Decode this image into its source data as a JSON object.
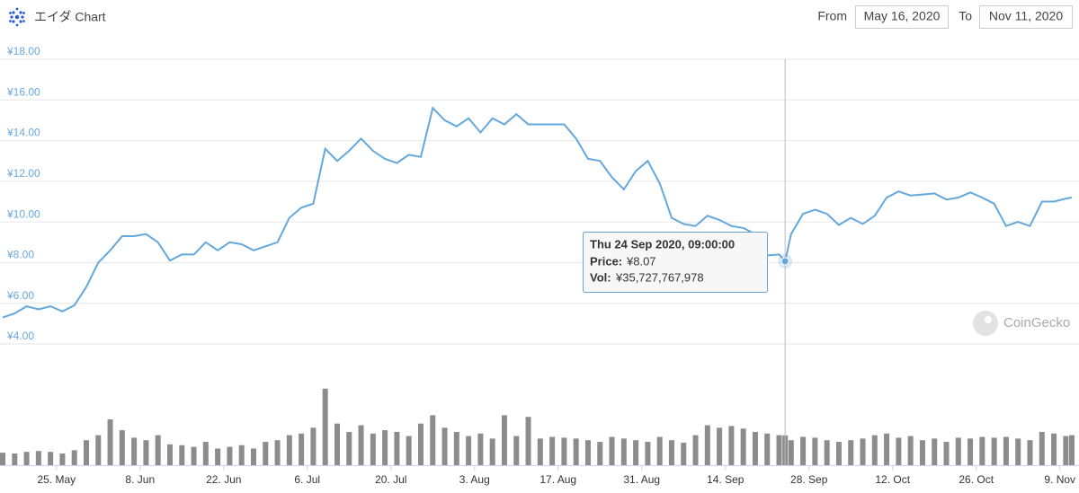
{
  "header": {
    "title": "エイダ Chart",
    "from_label": "From",
    "from": "May 16, 2020",
    "to_label": "To",
    "to": "Nov 11, 2020"
  },
  "watermark": "CoinGecko",
  "chart_data": {
    "type": "line",
    "x": [
      "2020-05-16",
      "2020-05-18",
      "2020-05-20",
      "2020-05-22",
      "2020-05-24",
      "2020-05-26",
      "2020-05-28",
      "2020-05-30",
      "2020-06-01",
      "2020-06-03",
      "2020-06-05",
      "2020-06-07",
      "2020-06-09",
      "2020-06-11",
      "2020-06-13",
      "2020-06-15",
      "2020-06-17",
      "2020-06-19",
      "2020-06-21",
      "2020-06-23",
      "2020-06-25",
      "2020-06-27",
      "2020-06-29",
      "2020-07-01",
      "2020-07-03",
      "2020-07-05",
      "2020-07-07",
      "2020-07-09",
      "2020-07-11",
      "2020-07-13",
      "2020-07-15",
      "2020-07-17",
      "2020-07-19",
      "2020-07-21",
      "2020-07-23",
      "2020-07-25",
      "2020-07-27",
      "2020-07-29",
      "2020-07-31",
      "2020-08-02",
      "2020-08-04",
      "2020-08-06",
      "2020-08-08",
      "2020-08-10",
      "2020-08-12",
      "2020-08-14",
      "2020-08-16",
      "2020-08-18",
      "2020-08-20",
      "2020-08-22",
      "2020-08-24",
      "2020-08-26",
      "2020-08-28",
      "2020-08-30",
      "2020-09-01",
      "2020-09-03",
      "2020-09-05",
      "2020-09-07",
      "2020-09-09",
      "2020-09-11",
      "2020-09-13",
      "2020-09-15",
      "2020-09-17",
      "2020-09-19",
      "2020-09-21",
      "2020-09-23",
      "2020-09-24",
      "2020-09-25",
      "2020-09-27",
      "2020-09-29",
      "2020-10-01",
      "2020-10-03",
      "2020-10-05",
      "2020-10-07",
      "2020-10-09",
      "2020-10-11",
      "2020-10-13",
      "2020-10-15",
      "2020-10-17",
      "2020-10-19",
      "2020-10-21",
      "2020-10-23",
      "2020-10-25",
      "2020-10-27",
      "2020-10-29",
      "2020-10-31",
      "2020-11-02",
      "2020-11-04",
      "2020-11-06",
      "2020-11-08",
      "2020-11-10",
      "2020-11-11"
    ],
    "series": [
      {
        "color": "#64a7dd",
        "values": [
          5.3,
          5.5,
          5.85,
          5.7,
          5.85,
          5.6,
          5.9,
          6.8,
          8.0,
          8.6,
          9.3,
          9.3,
          9.4,
          9.0,
          8.1,
          8.4,
          8.4,
          9.0,
          8.6,
          9.0,
          8.9,
          8.6,
          8.8,
          9.0,
          10.2,
          10.7,
          10.9,
          13.6,
          13.0,
          13.5,
          14.1,
          13.5,
          13.1,
          12.9,
          13.3,
          13.2,
          15.6,
          15.0,
          14.7,
          15.1,
          14.4,
          15.1,
          14.8,
          15.3,
          14.8,
          14.8,
          14.8,
          14.8,
          14.1,
          13.1,
          13.0,
          12.2,
          11.6,
          12.5,
          13.0,
          11.9,
          10.2,
          9.9,
          9.8,
          10.3,
          10.1,
          9.8,
          9.7,
          9.4,
          8.35,
          8.4,
          8.07,
          9.4,
          10.4,
          10.6,
          10.4,
          9.85,
          10.2,
          9.9,
          10.3,
          11.2,
          11.5,
          11.3,
          11.35,
          11.4,
          11.1,
          11.2,
          11.45,
          11.2,
          10.9,
          9.8,
          10.0,
          9.8,
          11.0,
          11.0,
          11.15,
          11.2
        ]
      },
      {
        "color": "#8c8c8c",
        "axis": "y2",
        "values": [
          15000000000.0,
          14000000000.0,
          16000000000.0,
          17000000000.0,
          16000000000.0,
          14000000000.0,
          18000000000.0,
          30000000000.0,
          36000000000.0,
          55000000000.0,
          42000000000.0,
          33000000000.0,
          30000000000.0,
          36000000000.0,
          25000000000.0,
          24000000000.0,
          22000000000.0,
          28000000000.0,
          20000000000.0,
          22000000000.0,
          24000000000.0,
          20000000000.0,
          28000000000.0,
          30000000000.0,
          36000000000.0,
          38000000000.0,
          45000000000.0,
          92000000000.0,
          50000000000.0,
          40000000000.0,
          48000000000.0,
          38000000000.0,
          42000000000.0,
          40000000000.0,
          35000000000.0,
          50000000000.0,
          60000000000.0,
          45000000000.0,
          40000000000.0,
          35000000000.0,
          38000000000.0,
          32000000000.0,
          60000000000.0,
          35000000000.0,
          58000000000.0,
          32000000000.0,
          34000000000.0,
          33000000000.0,
          32000000000.0,
          30000000000.0,
          28000000000.0,
          34000000000.0,
          32000000000.0,
          30000000000.0,
          28000000000.0,
          34000000000.0,
          30000000000.0,
          27000000000.0,
          36000000000.0,
          48000000000.0,
          45000000000.0,
          47000000000.0,
          44000000000.0,
          40000000000.0,
          38000000000.0,
          36000000000.0,
          35727767978,
          30000000000.0,
          34000000000.0,
          33000000000.0,
          30000000000.0,
          28000000000.0,
          30000000000.0,
          32000000000.0,
          36000000000.0,
          38000000000.0,
          33000000000.0,
          35000000000.0,
          30000000000.0,
          32000000000.0,
          28000000000.0,
          33000000000.0,
          32000000000.0,
          34000000000.0,
          33000000000.0,
          34000000000.0,
          32000000000.0,
          30000000000.0,
          40000000000.0,
          38000000000.0,
          35000000000.0,
          36000000000.0
        ]
      }
    ],
    "xlim": [
      "2020-05-16",
      "2020-11-11"
    ],
    "xticks": [
      {
        "value": "2020-05-25",
        "label": "25. May"
      },
      {
        "value": "2020-06-08",
        "label": "8. Jun"
      },
      {
        "value": "2020-06-22",
        "label": "22. Jun"
      },
      {
        "value": "2020-07-06",
        "label": "6. Jul"
      },
      {
        "value": "2020-07-20",
        "label": "20. Jul"
      },
      {
        "value": "2020-08-03",
        "label": "3. Aug"
      },
      {
        "value": "2020-08-17",
        "label": "17. Aug"
      },
      {
        "value": "2020-08-31",
        "label": "31. Aug"
      },
      {
        "value": "2020-09-14",
        "label": "14. Sep"
      },
      {
        "value": "2020-09-28",
        "label": "28. Sep"
      },
      {
        "value": "2020-10-12",
        "label": "12. Oct"
      },
      {
        "value": "2020-10-26",
        "label": "26. Oct"
      },
      {
        "value": "2020-11-09",
        "label": "9. Nov"
      }
    ],
    "ylim": [
      4,
      18
    ],
    "yticks": [
      {
        "value": 4,
        "label": "¥4.00"
      },
      {
        "value": 6,
        "label": "¥6.00"
      },
      {
        "value": 8,
        "label": "¥8.00"
      },
      {
        "value": 10,
        "label": "¥10.00"
      },
      {
        "value": 12,
        "label": "¥12.00"
      },
      {
        "value": 14,
        "label": "¥14.00"
      },
      {
        "value": 16,
        "label": "¥16.00"
      },
      {
        "value": 18,
        "label": "¥18.00"
      }
    ],
    "y2lim": [
      0,
      95000000000.0
    ],
    "grid": true,
    "tooltip": {
      "at": "2020-09-24",
      "date": "Thu 24 Sep 2020, 09:00:00",
      "price_label": "Price:",
      "price": "¥8.07",
      "vol_label": "Vol:",
      "vol": "¥35,727,767,978"
    }
  }
}
